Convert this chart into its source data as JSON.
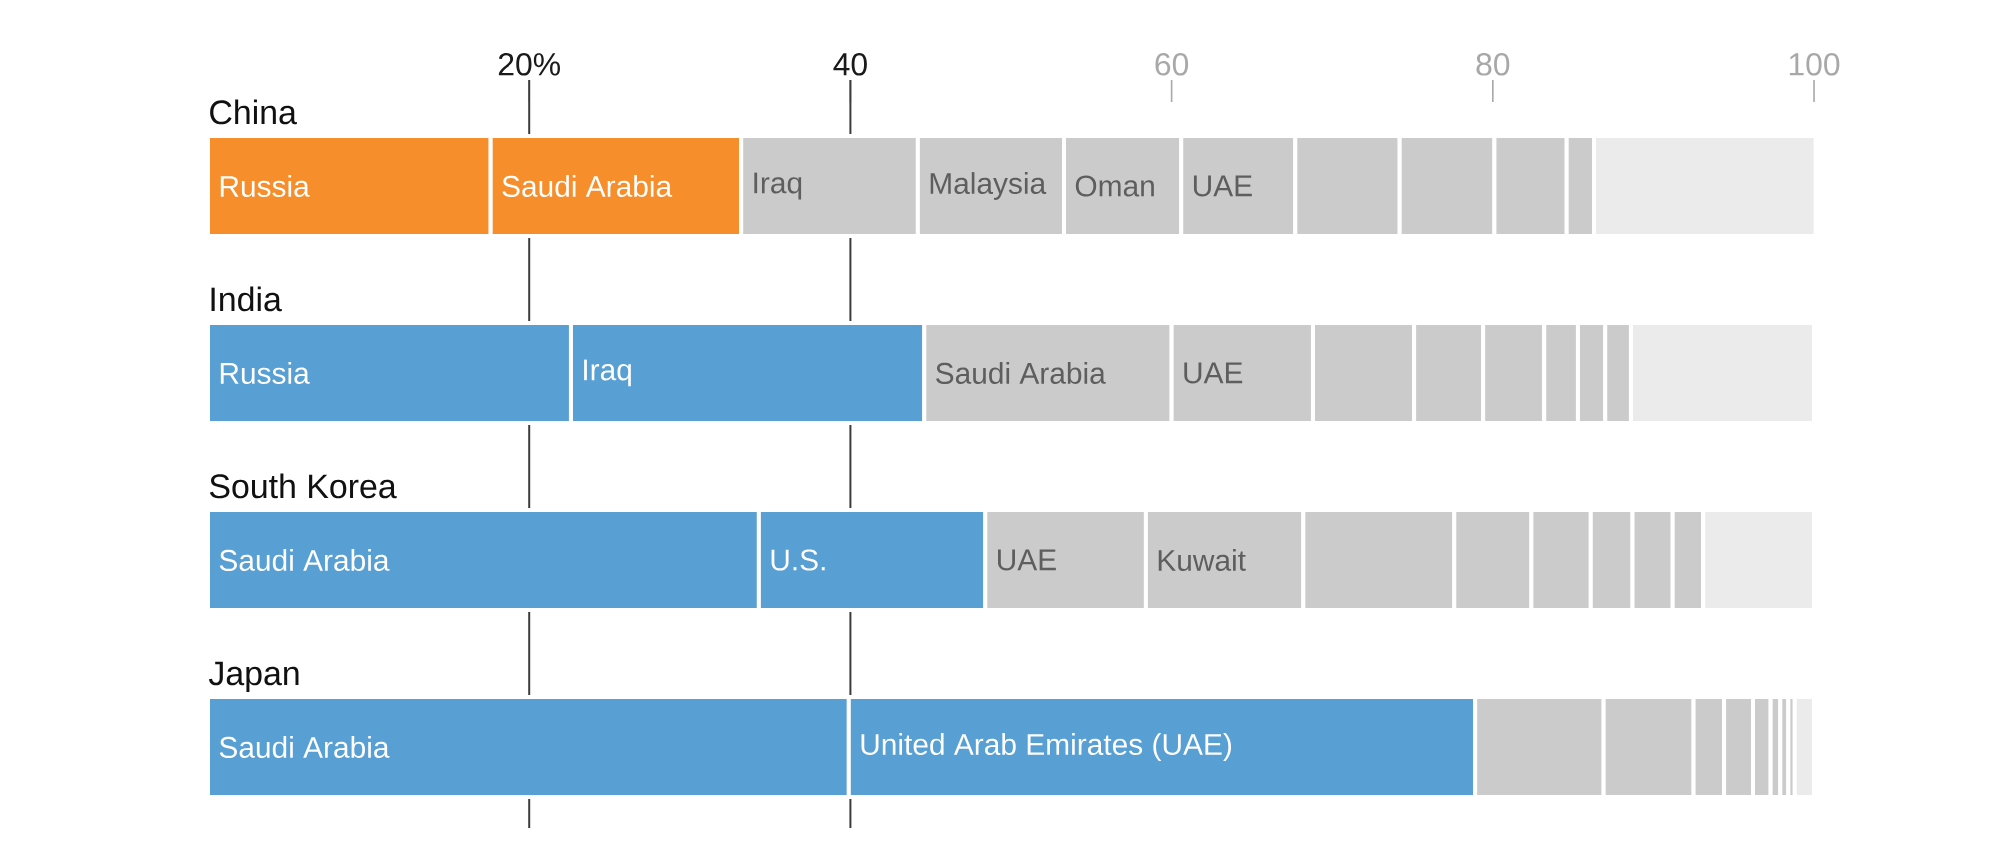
{
  "chart_data": {
    "type": "bar",
    "orientation": "horizontal",
    "stacked": true,
    "categories": [
      "China",
      "India",
      "South Korea",
      "Japan"
    ],
    "xlim": [
      0,
      100
    ],
    "xticks": [
      {
        "value": 20,
        "label": "20%"
      },
      40,
      60,
      80,
      100
    ],
    "ref_lines": [
      {
        "axis": "x",
        "value": 20,
        "color": "#3c3c3c"
      },
      {
        "axis": "x",
        "value": 40,
        "color": "#3c3c3c"
      }
    ],
    "series": [
      {
        "colors": [
          "#f68e2b",
          "#589fd4",
          "#589fd4",
          "#589fd4"
        ],
        "values": [
          17.6,
          22.6,
          34.3,
          39.9
        ],
        "value_labels": [
          "Russia",
          "Russia",
          "Saudi Arabia",
          "Saudi Arabia"
        ]
      },
      {
        "colors": [
          "#f68e2b",
          "#589fd4",
          "#589fd4",
          "#589fd4"
        ],
        "values": [
          15.6,
          22.0,
          14.1,
          39.0
        ],
        "value_labels": [
          "Saudi Arabia",
          "Iraq",
          "U.S.",
          "United Arab Emirates (UAE)"
        ]
      },
      {
        "colors": [
          "#cbcbcb",
          "#cbcbcb",
          "#cbcbcb",
          "#cbcbcb"
        ],
        "values": [
          11.0,
          15.4,
          10.0,
          8.0
        ],
        "value_labels": [
          "Iraq",
          "Saudi Arabia",
          "UAE",
          null
        ]
      },
      {
        "colors": [
          "#cbcbcb",
          "#cbcbcb",
          "#cbcbcb",
          "#cbcbcb"
        ],
        "values": [
          9.1,
          8.8,
          9.8,
          5.6
        ],
        "value_labels": [
          "Malaysia",
          "UAE",
          "Kuwait",
          null
        ]
      },
      {
        "colors": [
          "#cbcbcb",
          "#cbcbcb",
          "#cbcbcb",
          "#cbcbcb"
        ],
        "values": [
          7.3,
          6.3,
          9.4,
          1.9
        ],
        "value_labels": [
          "Oman",
          null,
          null,
          null
        ]
      },
      {
        "colors": [
          "#cbcbcb",
          "#cbcbcb",
          "#cbcbcb",
          "#cbcbcb"
        ],
        "values": [
          7.1,
          4.3,
          4.8,
          1.8
        ],
        "value_labels": [
          "UAE",
          null,
          null,
          null
        ]
      },
      {
        "colors": [
          "#cbcbcb",
          "#cbcbcb",
          "#cbcbcb",
          "#cbcbcb"
        ],
        "values": [
          6.5,
          3.8,
          3.7,
          1.1
        ]
      },
      {
        "colors": [
          "#cbcbcb",
          "#cbcbcb",
          "#cbcbcb",
          "#cbcbcb"
        ],
        "values": [
          5.9,
          2.1,
          2.6,
          0.6
        ]
      },
      {
        "colors": [
          "#cbcbcb",
          "#cbcbcb",
          "#cbcbcb",
          "#cbcbcb"
        ],
        "values": [
          4.5,
          1.7,
          2.5,
          0.5
        ]
      },
      {
        "colors": [
          "#cbcbcb",
          "#cbcbcb",
          "#cbcbcb",
          "#cbcbcb"
        ],
        "values": [
          1.7,
          1.6,
          1.9,
          0.4
        ]
      },
      {
        "colors": [
          "#ebebeb",
          "#ebebeb",
          "#ebebeb",
          "#ebebeb"
        ],
        "values": [
          13.8,
          11.4,
          6.9,
          1.2
        ]
      }
    ]
  }
}
